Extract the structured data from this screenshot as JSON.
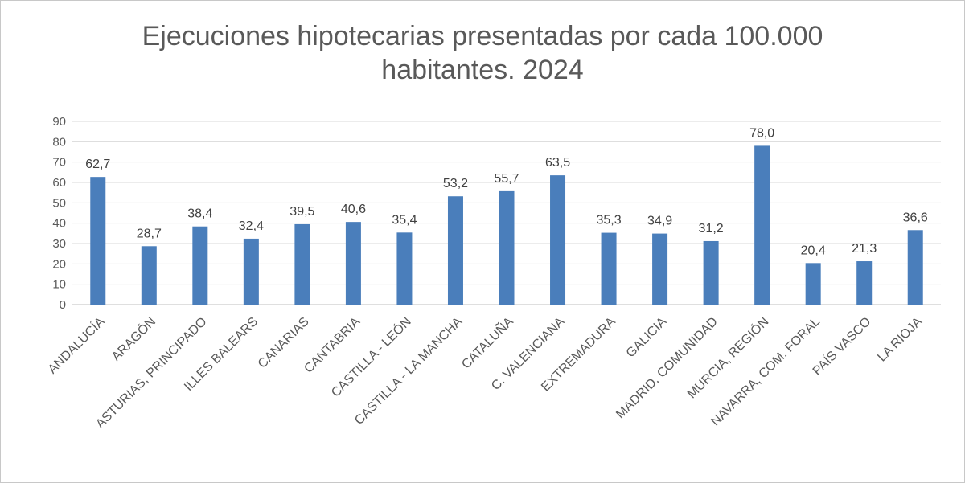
{
  "chart_data": {
    "type": "bar",
    "title_lines": [
      "Ejecuciones hipotecarias presentadas por cada 100.000",
      "habitantes. 2024"
    ],
    "categories": [
      "ANDALUCÍA",
      "ARAGÓN",
      "ASTURIAS, PRINCIPADO",
      "ILLES BALEARS",
      "CANARIAS",
      "CANTABRIA",
      "CASTILLA - LEÓN",
      "CASTILLA - LA MANCHA",
      "CATALUÑA",
      "C. VALENCIANA",
      "EXTREMADURA",
      "GALICIA",
      "MADRID, COMUNIDAD",
      "MURCIA, REGIÓN",
      "NAVARRA, COM. FORAL",
      "PAÍS VASCO",
      "LA RIOJA"
    ],
    "values": [
      62.7,
      28.7,
      38.4,
      32.4,
      39.5,
      40.6,
      35.4,
      53.2,
      55.7,
      63.5,
      35.3,
      34.9,
      31.2,
      78.0,
      20.4,
      21.3,
      36.6
    ],
    "value_labels": [
      "62,7",
      "28,7",
      "38,4",
      "32,4",
      "39,5",
      "40,6",
      "35,4",
      "53,2",
      "55,7",
      "63,5",
      "35,3",
      "34,9",
      "31,2",
      "78,0",
      "20,4",
      "21,3",
      "36,6"
    ],
    "ylim": [
      0,
      90
    ],
    "yticks": [
      "0",
      "10",
      "20",
      "30",
      "40",
      "50",
      "60",
      "70",
      "80",
      "90"
    ],
    "grid": true,
    "legend": "none",
    "bar_color": "#4a7ebb",
    "grid_color": "#d9d9d9"
  }
}
